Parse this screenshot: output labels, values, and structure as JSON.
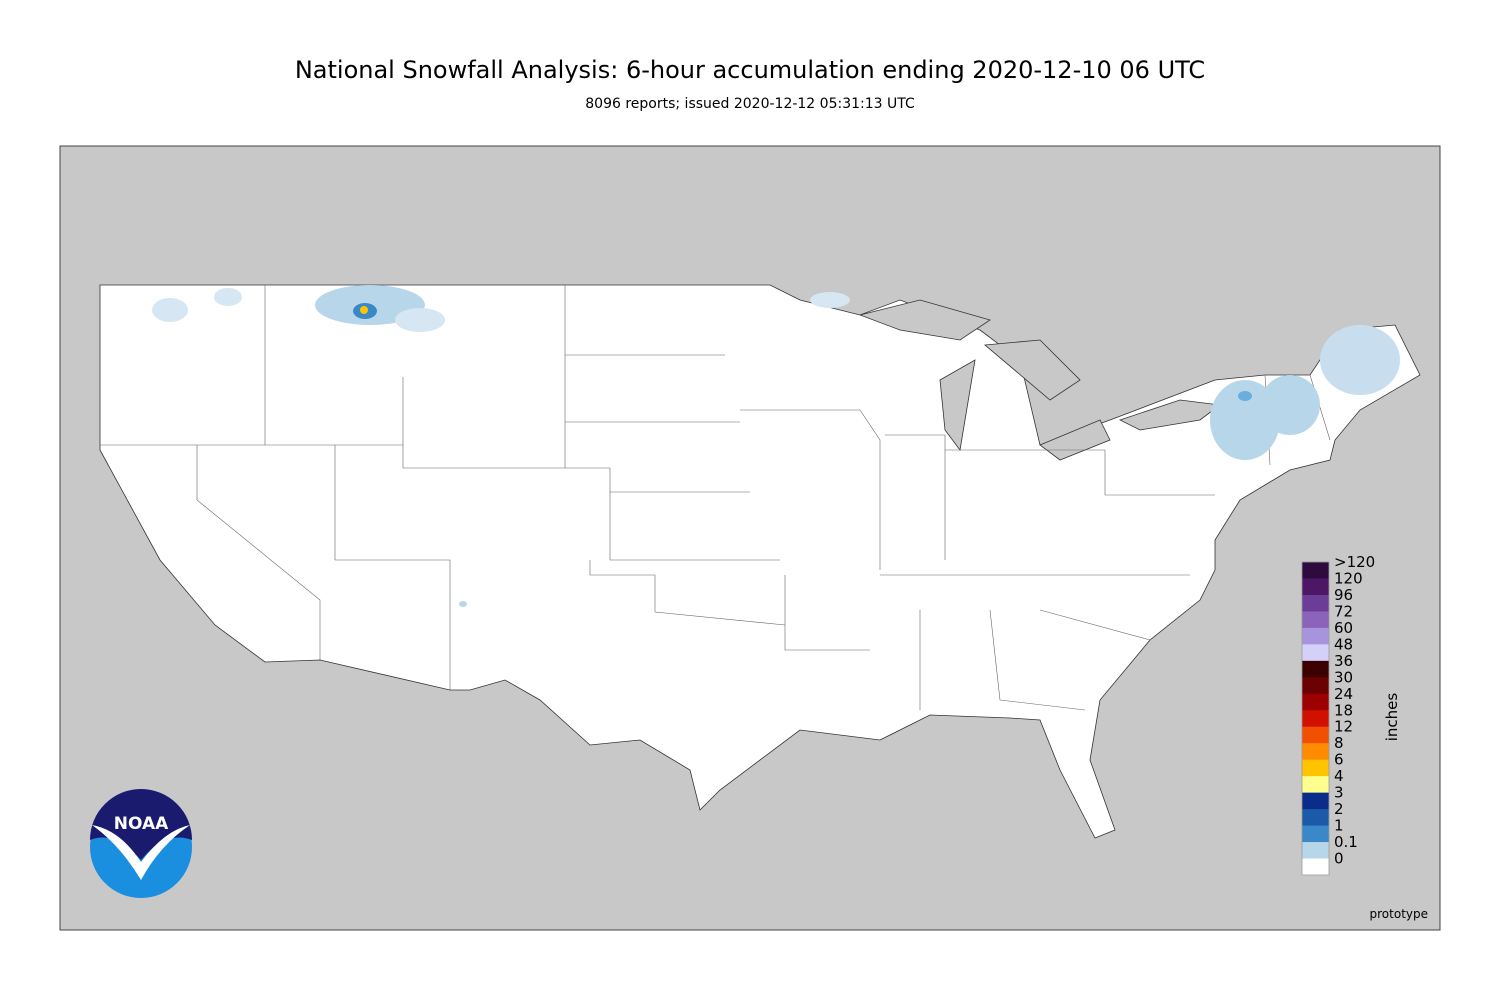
{
  "header": {
    "title": "National Snowfall Analysis: 6-hour accumulation ending 2020-12-10 06 UTC",
    "subtitle": "8096 reports; issued 2020-12-12 05:31:13 UTC"
  },
  "legend": {
    "unit": "inches",
    "entries": [
      {
        "label": ">120",
        "color": "#2d0b3f"
      },
      {
        "label": "120",
        "color": "#4d1766"
      },
      {
        "label": "96",
        "color": "#6b3d97"
      },
      {
        "label": "72",
        "color": "#8c63bb"
      },
      {
        "label": "60",
        "color": "#a894dd"
      },
      {
        "label": "48",
        "color": "#d5d0fa"
      },
      {
        "label": "36",
        "color": "#3b0000"
      },
      {
        "label": "30",
        "color": "#6b0000"
      },
      {
        "label": "24",
        "color": "#9c0000"
      },
      {
        "label": "18",
        "color": "#d11000"
      },
      {
        "label": "12",
        "color": "#f05000"
      },
      {
        "label": "8",
        "color": "#ff8c00"
      },
      {
        "label": "6",
        "color": "#ffc400"
      },
      {
        "label": "4",
        "color": "#ffff90"
      },
      {
        "label": "3",
        "color": "#0c2c8c"
      },
      {
        "label": "2",
        "color": "#1a5aa8"
      },
      {
        "label": "1",
        "color": "#3a88c8"
      },
      {
        "label": "0.1",
        "color": "#b8d6ea"
      },
      {
        "label": "0",
        "color": "#ffffff"
      }
    ]
  },
  "logo": {
    "text": "NOAA"
  },
  "footer": {
    "note": "prototype"
  }
}
